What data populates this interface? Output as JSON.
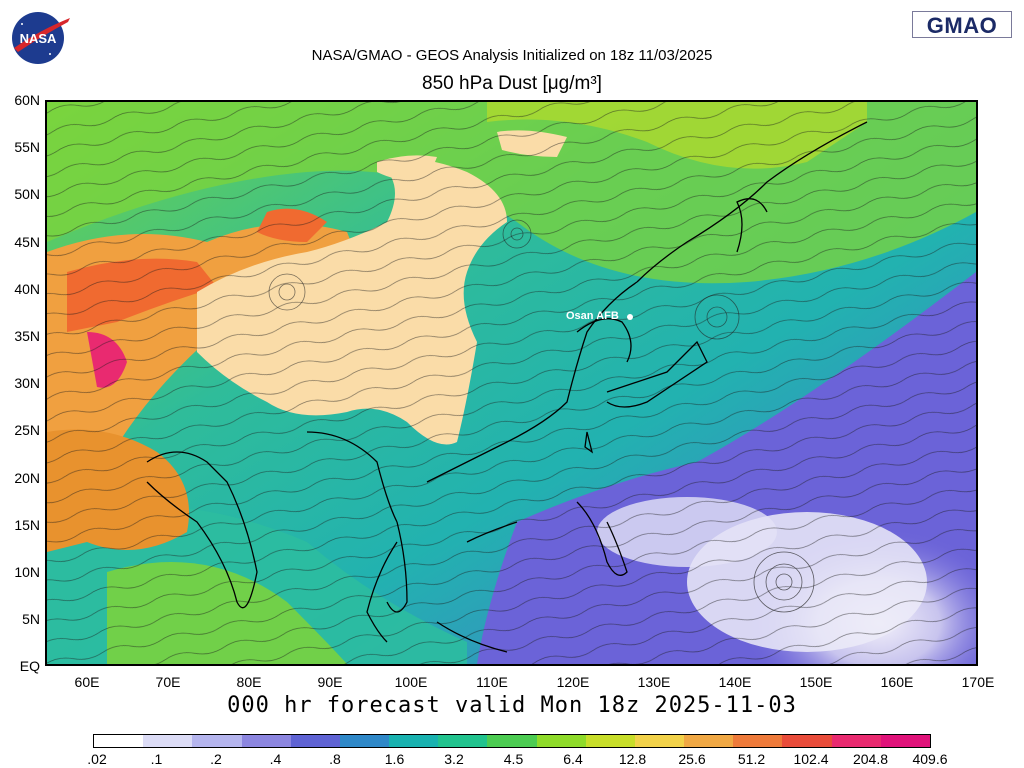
{
  "header": {
    "nasa_logo_text": "NASA",
    "gmao_logo_text": "GMAO",
    "title_line1": "NASA/GMAO - GEOS Analysis Initialized on 18z 11/03/2025",
    "title_line2": "850 hPa Dust [μg/m³]"
  },
  "map": {
    "lat_labels": [
      "60N",
      "55N",
      "50N",
      "45N",
      "40N",
      "35N",
      "30N",
      "25N",
      "20N",
      "15N",
      "10N",
      "5N",
      "EQ"
    ],
    "lon_labels": [
      "60E",
      "70E",
      "80E",
      "90E",
      "100E",
      "110E",
      "120E",
      "130E",
      "140E",
      "150E",
      "160E",
      "170E"
    ],
    "station_label": "Osan AFB",
    "regions": [
      {
        "name": "dust-source-plateau",
        "color": "#fadca8"
      },
      {
        "name": "high-dust",
        "color": "#f06a30"
      },
      {
        "name": "moderate-dust",
        "color": "#f0a040"
      },
      {
        "name": "green-band",
        "color": "#7ed43a"
      },
      {
        "name": "teal-band",
        "color": "#27b6a8"
      },
      {
        "name": "clean-pacific",
        "color": "#6b63d8"
      },
      {
        "name": "very-clean",
        "color": "#eeeaf8"
      }
    ]
  },
  "footer": {
    "forecast_text": "000 hr forecast valid Mon 18z 2025-11-03",
    "colorbar_labels": [
      ".02",
      ".1",
      ".2",
      ".4",
      ".8",
      "1.6",
      "3.2",
      "4.5",
      "6.4",
      "12.8",
      "25.6",
      "51.2",
      "102.4",
      "204.8",
      "409.6"
    ],
    "colorbar_colors": [
      "#ffffff",
      "#dcdcf6",
      "#b5b5ee",
      "#8c86e0",
      "#5f63d4",
      "#2f88c8",
      "#19b2b0",
      "#21c38e",
      "#4ccc52",
      "#8fdb2a",
      "#c8de2a",
      "#f2d24a",
      "#f0a844",
      "#ee7a3a",
      "#e94c3a",
      "#e92a70",
      "#e0127a"
    ]
  }
}
